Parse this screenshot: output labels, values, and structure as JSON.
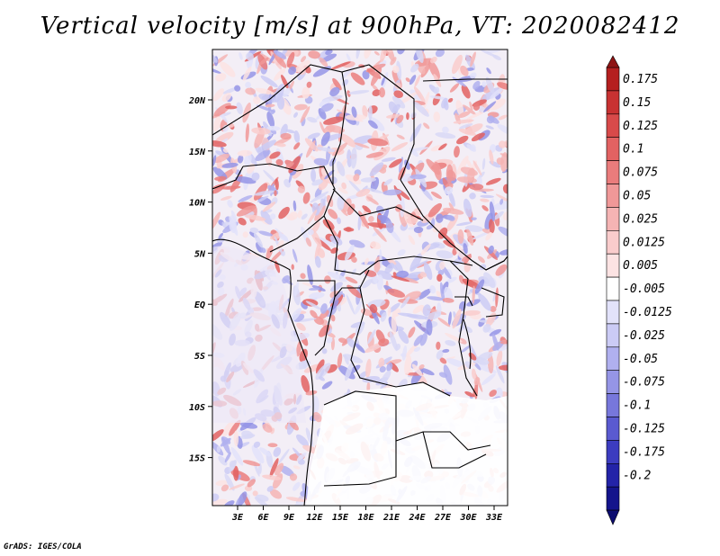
{
  "title": "Vertical velocity [m/s] at 900hPa, VT: 2020082412",
  "footer": "GrADS: IGES/COLA",
  "map": {
    "lat_labels": [
      "20N",
      "15N",
      "10N",
      "5N",
      "EQ",
      "5S",
      "10S",
      "15S"
    ],
    "lon_labels": [
      "3E",
      "6E",
      "9E",
      "12E",
      "15E",
      "18E",
      "21E",
      "24E",
      "27E",
      "30E",
      "33E"
    ]
  },
  "colorbar": {
    "labels": [
      "0.175",
      "0.15",
      "0.125",
      "0.1",
      "0.075",
      "0.05",
      "0.025",
      "0.0125",
      "0.005",
      "-0.005",
      "-0.0125",
      "-0.025",
      "-0.05",
      "-0.075",
      "-0.1",
      "-0.125",
      "-0.175",
      "-0.2"
    ],
    "colors": [
      "#b51f1f",
      "#c83232",
      "#d84a4a",
      "#e26262",
      "#ea7c7c",
      "#f09898",
      "#f5b4b4",
      "#f9cccc",
      "#fce3e3",
      "#ffffff",
      "#e2e2fa",
      "#cbcbf5",
      "#b0b0ef",
      "#9595e6",
      "#7777db",
      "#5a5ad0",
      "#3c3cc0",
      "#2323a8",
      "#14148c"
    ]
  }
}
